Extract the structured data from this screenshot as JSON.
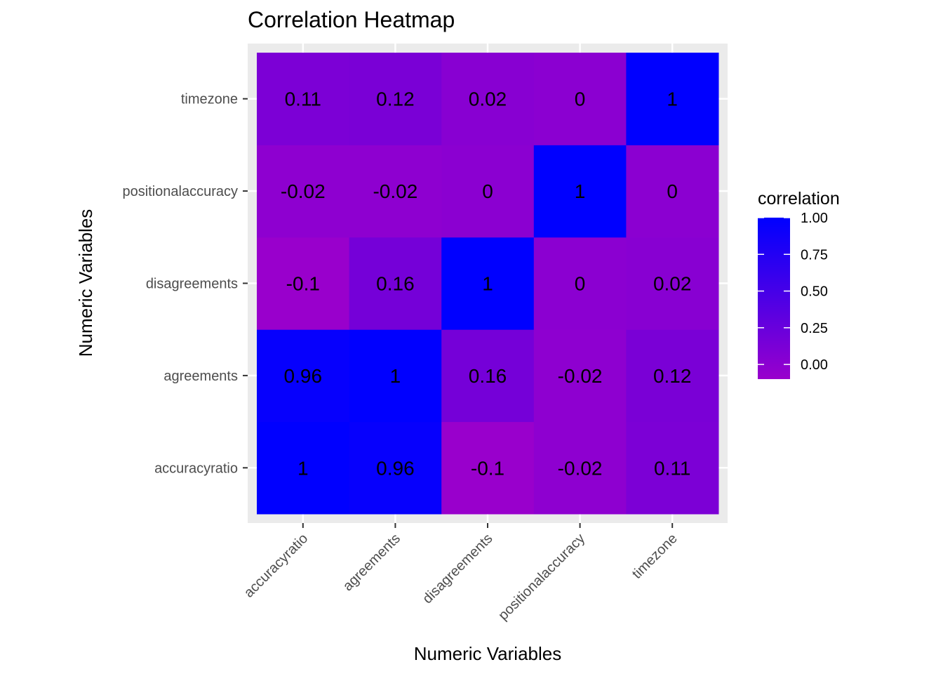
{
  "chart_data": {
    "type": "heatmap",
    "title": "Correlation Heatmap",
    "xlabel": "Numeric Variables",
    "ylabel": "Numeric Variables",
    "x_categories": [
      "accuracyratio",
      "agreements",
      "disagreements",
      "positionalaccuracy",
      "timezone"
    ],
    "y_categories": [
      "accuracyratio",
      "agreements",
      "disagreements",
      "positionalaccuracy",
      "timezone"
    ],
    "cells": [
      {
        "x": "accuracyratio",
        "y": "accuracyratio",
        "value": 1,
        "label": "1"
      },
      {
        "x": "agreements",
        "y": "accuracyratio",
        "value": 0.96,
        "label": "0.96"
      },
      {
        "x": "disagreements",
        "y": "accuracyratio",
        "value": -0.1,
        "label": "-0.1"
      },
      {
        "x": "positionalaccuracy",
        "y": "accuracyratio",
        "value": -0.02,
        "label": "-0.02"
      },
      {
        "x": "timezone",
        "y": "accuracyratio",
        "value": 0.11,
        "label": "0.11"
      },
      {
        "x": "accuracyratio",
        "y": "agreements",
        "value": 0.96,
        "label": "0.96"
      },
      {
        "x": "agreements",
        "y": "agreements",
        "value": 1,
        "label": "1"
      },
      {
        "x": "disagreements",
        "y": "agreements",
        "value": 0.16,
        "label": "0.16"
      },
      {
        "x": "positionalaccuracy",
        "y": "agreements",
        "value": -0.02,
        "label": "-0.02"
      },
      {
        "x": "timezone",
        "y": "agreements",
        "value": 0.12,
        "label": "0.12"
      },
      {
        "x": "accuracyratio",
        "y": "disagreements",
        "value": -0.1,
        "label": "-0.1"
      },
      {
        "x": "agreements",
        "y": "disagreements",
        "value": 0.16,
        "label": "0.16"
      },
      {
        "x": "disagreements",
        "y": "disagreements",
        "value": 1,
        "label": "1"
      },
      {
        "x": "positionalaccuracy",
        "y": "disagreements",
        "value": 0,
        "label": "0"
      },
      {
        "x": "timezone",
        "y": "disagreements",
        "value": 0.02,
        "label": "0.02"
      },
      {
        "x": "accuracyratio",
        "y": "positionalaccuracy",
        "value": -0.02,
        "label": "-0.02"
      },
      {
        "x": "agreements",
        "y": "positionalaccuracy",
        "value": -0.02,
        "label": "-0.02"
      },
      {
        "x": "disagreements",
        "y": "positionalaccuracy",
        "value": 0,
        "label": "0"
      },
      {
        "x": "positionalaccuracy",
        "y": "positionalaccuracy",
        "value": 1,
        "label": "1"
      },
      {
        "x": "timezone",
        "y": "positionalaccuracy",
        "value": 0,
        "label": "0"
      },
      {
        "x": "accuracyratio",
        "y": "timezone",
        "value": 0.11,
        "label": "0.11"
      },
      {
        "x": "agreements",
        "y": "timezone",
        "value": 0.12,
        "label": "0.12"
      },
      {
        "x": "disagreements",
        "y": "timezone",
        "value": 0.02,
        "label": "0.02"
      },
      {
        "x": "positionalaccuracy",
        "y": "timezone",
        "value": 0,
        "label": "0"
      },
      {
        "x": "timezone",
        "y": "timezone",
        "value": 1,
        "label": "1"
      }
    ],
    "legend": {
      "title": "correlation",
      "placement": "right",
      "breaks": [
        1.0,
        0.75,
        0.5,
        0.25,
        0.0
      ],
      "break_labels": [
        "1.00",
        "0.75",
        "0.50",
        "0.25",
        "0.00"
      ],
      "range": [
        -0.1,
        1.0
      ]
    },
    "colors": {
      "low": "#9900cc",
      "high": "#0000ff",
      "panel_background": "#ebebeb",
      "grid": "#ffffff"
    },
    "grid": true
  }
}
